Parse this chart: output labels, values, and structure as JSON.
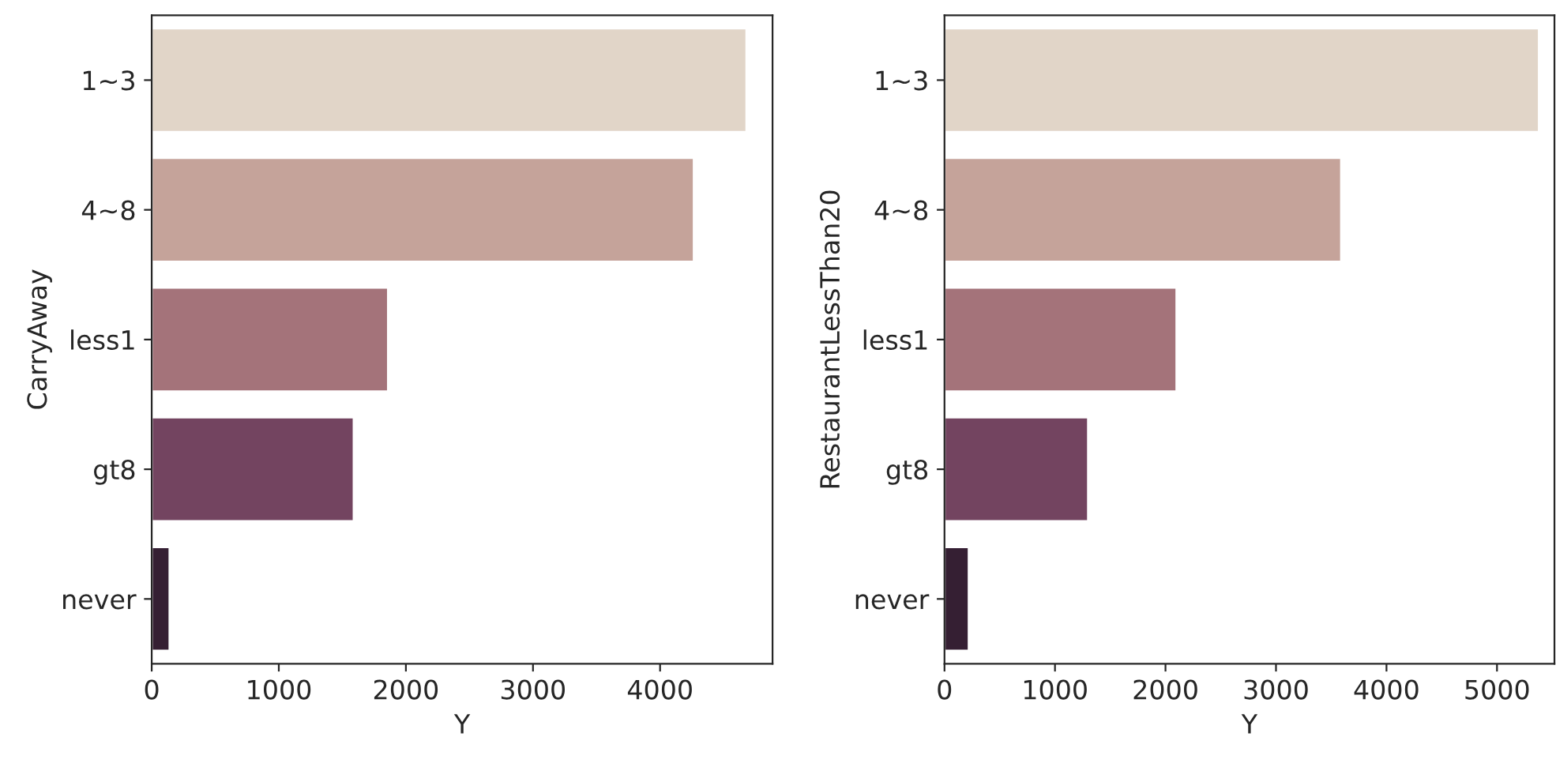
{
  "chart_data": [
    {
      "type": "bar",
      "orientation": "horizontal",
      "categories": [
        "1~3",
        "4~8",
        "less1",
        "gt8",
        "never"
      ],
      "values": [
        4680,
        4266,
        1860,
        1590,
        141
      ],
      "colors": [
        "#e1d5c8",
        "#c5a39a",
        "#a4737a",
        "#734460",
        "#351f33"
      ],
      "xlabel": "Y",
      "ylabel": "CarryAway",
      "xlim": [
        0,
        4885
      ],
      "xticks": [
        0,
        1000,
        2000,
        3000,
        4000
      ],
      "grid": false,
      "legend": false
    },
    {
      "type": "bar",
      "orientation": "horizontal",
      "categories": [
        "1~3",
        "4~8",
        "less1",
        "gt8",
        "never"
      ],
      "values": [
        5380,
        3590,
        2100,
        1300,
        220
      ],
      "colors": [
        "#e1d5c8",
        "#c5a39a",
        "#a4737a",
        "#734460",
        "#351f33"
      ],
      "xlabel": "Y",
      "ylabel": "RestaurantLessThan20",
      "xlim": [
        0,
        5520
      ],
      "xticks": [
        0,
        1000,
        2000,
        3000,
        4000,
        5000
      ],
      "grid": false,
      "legend": false
    }
  ]
}
